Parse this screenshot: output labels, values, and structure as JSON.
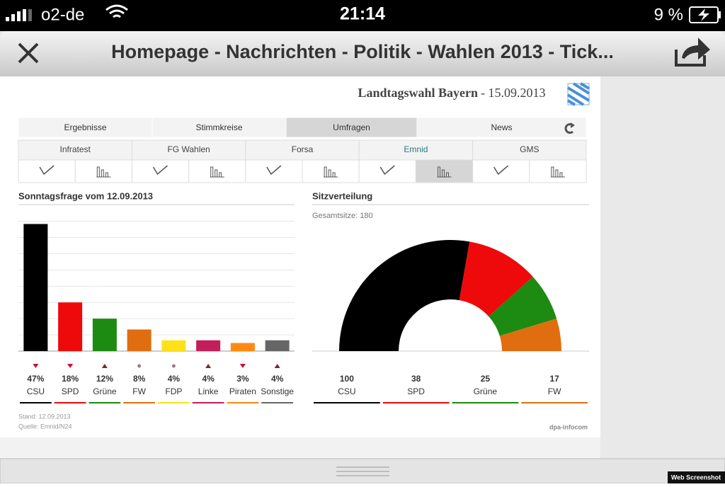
{
  "status_bar": {
    "carrier": "o2-de",
    "time": "21:14",
    "battery": "9 %"
  },
  "nav": {
    "title": "Homepage - Nachrichten - Politik - Wahlen 2013 - Tick..."
  },
  "header": {
    "title": "Landtagswahl Bayern",
    "date": "- 15.09.2013"
  },
  "tabs": [
    "Ergebnisse",
    "Stimmkreise",
    "Umfragen",
    "News"
  ],
  "institutes": [
    "Infratest",
    "FG Wahlen",
    "Forsa",
    "Emnid",
    "GMS"
  ],
  "chart_data": [
    {
      "type": "bar",
      "title": "Sonntagsfrage vom 12.09.2013",
      "categories": [
        "CSU",
        "SPD",
        "Grüne",
        "FW",
        "FDP",
        "Linke",
        "Piraten",
        "Sonstige"
      ],
      "values": [
        47,
        18,
        12,
        8,
        4,
        4,
        3,
        4
      ],
      "value_labels": [
        "47%",
        "18%",
        "12%",
        "8%",
        "4%",
        "4%",
        "3%",
        "4%"
      ],
      "colors": [
        "#000000",
        "#ee0a0a",
        "#1d8a12",
        "#e06e10",
        "#ffe11a",
        "#c31d5c",
        "#ff8a12",
        "#666666"
      ],
      "trend": [
        "down",
        "down",
        "up",
        "same",
        "same",
        "up",
        "down",
        "up"
      ],
      "ylim": [
        0,
        50
      ],
      "yticks": [
        0,
        6,
        12,
        18,
        24,
        30,
        36,
        42,
        48
      ],
      "grid": true
    },
    {
      "type": "pie",
      "title": "Sitzverteilung",
      "subtitle": "Gesamtsitze: 180",
      "categories": [
        "CSU",
        "SPD",
        "Grüne",
        "FW"
      ],
      "values": [
        100,
        38,
        25,
        17
      ],
      "colors": [
        "#000000",
        "#ee0a0a",
        "#1d8a12",
        "#e06e10"
      ]
    }
  ],
  "footer": {
    "stand": "Stand: 12.09.2013",
    "source": "Quelle: Emnid/N24",
    "credit": "dpa-infocom"
  },
  "badge": "Web Screenshot"
}
